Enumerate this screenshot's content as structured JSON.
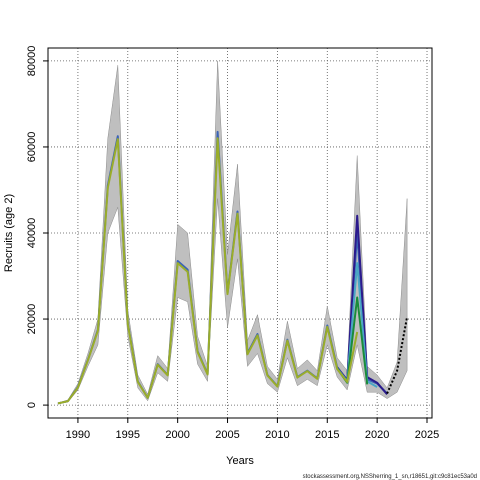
{
  "chart_data": {
    "type": "line",
    "title": "",
    "xlabel": "Years",
    "ylabel": "Recruits (age 2)",
    "xlim": [
      1987,
      2025.5
    ],
    "ylim": [
      -3000,
      83000
    ],
    "xticks": [
      1990,
      1995,
      2000,
      2005,
      2010,
      2015,
      2020,
      2025
    ],
    "yticks": [
      0,
      20000,
      40000,
      60000,
      80000
    ],
    "grid": true,
    "grid_style": "dotted",
    "legend": "none",
    "footer": "stockassessment.org,NSSherring_1_sn,r18651,git:c9c81ec53a0d",
    "colors": {
      "band": "#bfbfbf",
      "band_edge": "#8c8c8c",
      "main": "#9aad2a",
      "retro": [
        "#2b1a8c",
        "#3b63b6",
        "#4aa6c4",
        "#27a88a",
        "#1a8c3a",
        "#9aad2a"
      ],
      "forecast": "#000000"
    },
    "band": {
      "x": [
        1988,
        1989,
        1990,
        1991,
        1992,
        1993,
        1994,
        1995,
        1996,
        1997,
        1998,
        1999,
        2000,
        2001,
        2002,
        2003,
        2004,
        2005,
        2006,
        2007,
        2008,
        2009,
        2010,
        2011,
        2012,
        2013,
        2014,
        2015,
        2016,
        2017,
        2018,
        2019,
        2020,
        2021,
        2022,
        2023
      ],
      "upper": [
        500,
        1200,
        5000,
        12000,
        20000,
        62000,
        79000,
        22000,
        7000,
        2500,
        11500,
        8500,
        42000,
        40000,
        16000,
        9000,
        80000,
        35000,
        56000,
        15000,
        21000,
        9000,
        6000,
        19500,
        8500,
        10500,
        8000,
        23000,
        11000,
        8000,
        58000,
        9000,
        7000,
        4000,
        10000,
        48000
      ],
      "lower": [
        300,
        700,
        3500,
        9000,
        14000,
        40000,
        46000,
        16000,
        4000,
        1000,
        7500,
        5500,
        25000,
        24000,
        9500,
        5500,
        48000,
        18000,
        34000,
        9000,
        12000,
        5000,
        3000,
        11000,
        4500,
        6000,
        4500,
        14000,
        6500,
        3500,
        14000,
        3000,
        3000,
        1500,
        3000,
        8000
      ]
    },
    "series": [
      {
        "x": [
          1988,
          1989,
          1990,
          1991,
          1992,
          1993,
          1994,
          1995,
          1996,
          1997,
          1998,
          1999,
          2000,
          2001,
          2002,
          2003,
          2004,
          2005,
          2006,
          2007,
          2008,
          2009,
          2010,
          2011,
          2012,
          2013,
          2014,
          2015,
          2016,
          2017,
          2018,
          2019,
          2020,
          2021
        ],
        "values": [
          400,
          900,
          4200,
          10500,
          17500,
          51000,
          62500,
          19000,
          5500,
          1700,
          9500,
          7000,
          33500,
          31500,
          12500,
          7200,
          63500,
          26000,
          45000,
          12000,
          16500,
          7000,
          4400,
          15200,
          6500,
          8000,
          6200,
          18500,
          8700,
          5700,
          40000,
          6000,
          5000,
          2700
        ],
        "color": "#3b63b6"
      },
      {
        "x": [
          2016,
          2017,
          2018,
          2019,
          2020,
          2021
        ],
        "values": [
          8800,
          5800,
          44000,
          6500,
          5200,
          2500
        ],
        "color": "#2b1a8c"
      },
      {
        "x": [
          2016,
          2017,
          2018,
          2019,
          2020
        ],
        "values": [
          8600,
          5500,
          33000,
          5500,
          4200
        ],
        "color": "#4aa6c4"
      },
      {
        "x": [
          2016,
          2017,
          2018,
          2019
        ],
        "values": [
          8500,
          5200,
          25000,
          4800
        ],
        "color": "#1a8c3a"
      },
      {
        "x": [
          1988,
          1989,
          1990,
          1991,
          1992,
          1993,
          1994,
          1995,
          1996,
          1997,
          1998,
          1999,
          2000,
          2001,
          2002,
          2003,
          2004,
          2005,
          2006,
          2007,
          2008,
          2009,
          2010,
          2011,
          2012,
          2013,
          2014,
          2015,
          2016,
          2017,
          2018
        ],
        "values": [
          400,
          900,
          4100,
          10400,
          17300,
          50500,
          61800,
          18800,
          5400,
          1700,
          9400,
          6900,
          33000,
          31000,
          12300,
          7100,
          62000,
          25800,
          44500,
          11800,
          16200,
          6900,
          4300,
          15000,
          6400,
          7900,
          6100,
          18200,
          8400,
          5400,
          17000
        ],
        "color": "#9aad2a"
      },
      {
        "x": [
          2021,
          2022,
          2023
        ],
        "values": [
          2700,
          8000,
          20500
        ],
        "color": "#000000",
        "dashed": true
      }
    ]
  }
}
